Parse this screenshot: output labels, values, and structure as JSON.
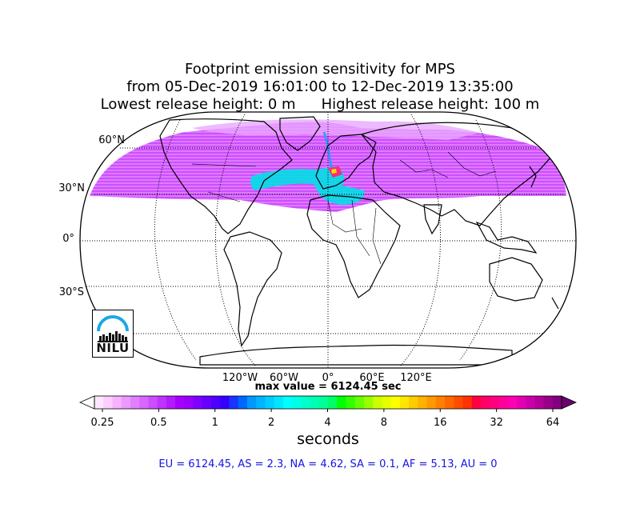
{
  "title": {
    "line1": "Footprint emission sensitivity for MPS",
    "line2": "from 05-Dec-2019 16:01:00 to 12-Dec-2019 13:35:00",
    "release_low": "Lowest release height: 0 m",
    "release_high": "Highest release height: 100 m"
  },
  "map": {
    "projection": "Robinson",
    "lat_labels": [
      "60°N",
      "30°N",
      "0°",
      "30°S"
    ],
    "lon_labels": [
      "120°W",
      "60°W",
      "0°",
      "60°E",
      "120°E"
    ],
    "logo_text": "NILU"
  },
  "max_value_text": "max value = 6124.45 sec",
  "colorbar": {
    "ticks": [
      "0.25",
      "0.5",
      "1",
      "2",
      "4",
      "8",
      "16",
      "32",
      "64"
    ],
    "unit_label": "seconds",
    "colors": [
      "#ffe6ff",
      "#ffccff",
      "#f5b3ff",
      "#eb99ff",
      "#e080ff",
      "#d966ff",
      "#cc4dff",
      "#bf33ff",
      "#b31aff",
      "#a600ff",
      "#9900ff",
      "#7f00ff",
      "#6600ff",
      "#4d00ff",
      "#3300ff",
      "#1a33ff",
      "#0066ff",
      "#0099ff",
      "#00b3ff",
      "#00ccff",
      "#00e6ff",
      "#00ffff",
      "#00ffe6",
      "#00ffcc",
      "#00ffb3",
      "#00ff99",
      "#00ff66",
      "#00ff00",
      "#33ff00",
      "#66ff00",
      "#99ff00",
      "#ccff00",
      "#e6ff00",
      "#ffff00",
      "#ffe600",
      "#ffcc00",
      "#ffb300",
      "#ff9900",
      "#ff8000",
      "#ff6600",
      "#ff4d00",
      "#ff3300",
      "#ff0040",
      "#ff0066",
      "#ff0080",
      "#ff0099",
      "#ff00b3",
      "#e600b3",
      "#cc00aa",
      "#b30099",
      "#990088",
      "#800080"
    ],
    "under_color": "#ffffff",
    "over_color": "#6b006b"
  },
  "regions": "EU = 6124.45,  AS = 2.3,  NA = 4.62,  SA = 0.1,  AF = 5.13,  AU = 0",
  "colors": {
    "region_text": "#1414e6",
    "sensitivity": "#cc44ff",
    "hotspot": "#00e0e6"
  }
}
